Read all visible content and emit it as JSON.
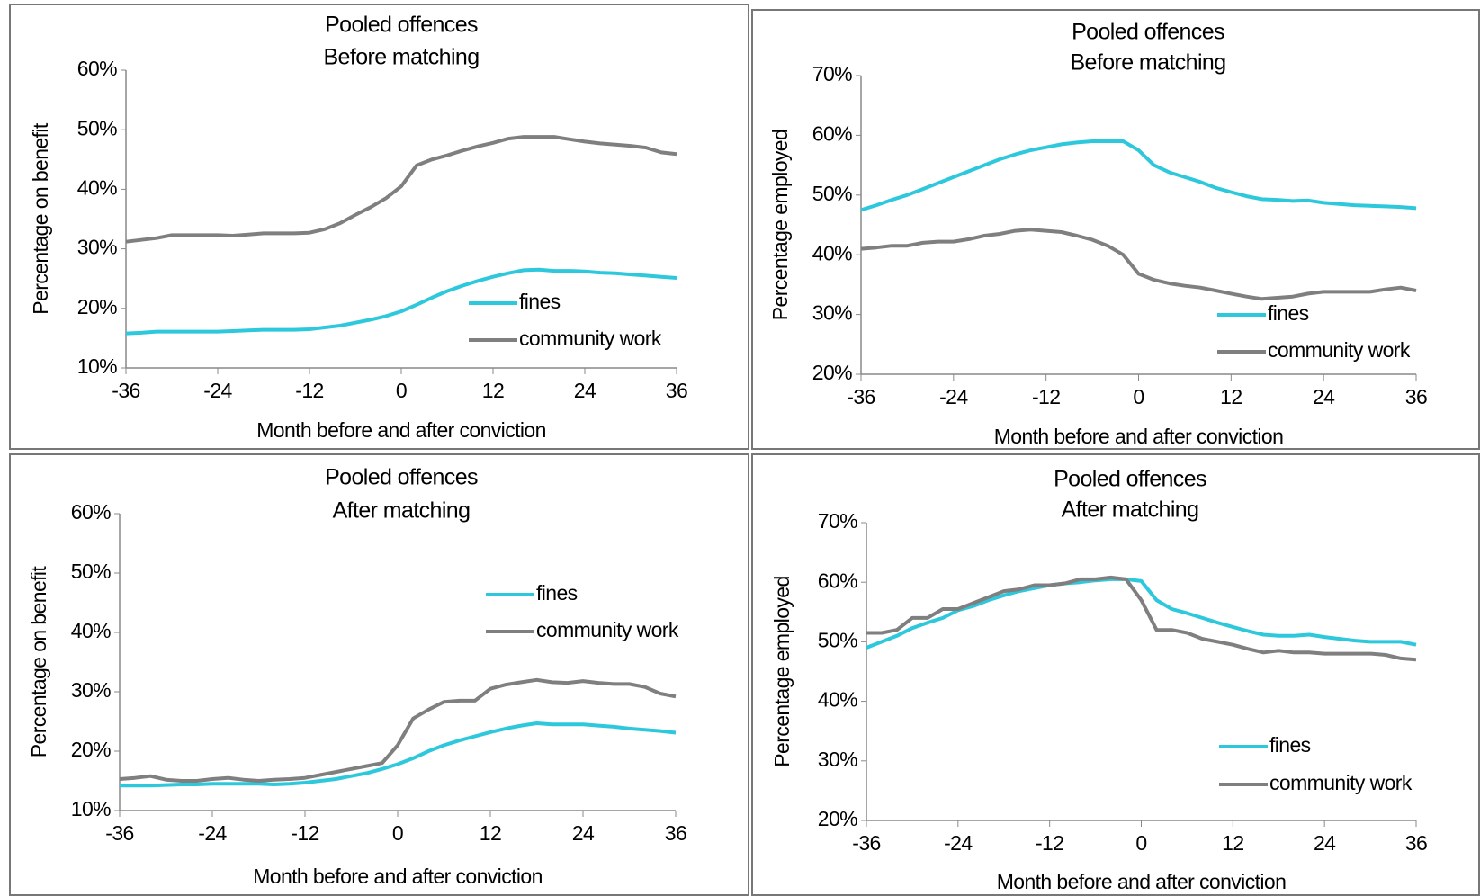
{
  "chart_data": [
    {
      "type": "line",
      "title": "Pooled offences",
      "subtitle": "Before matching",
      "x_label": "Month before and after conviction",
      "y_label": "Percentage on benefit",
      "x": [
        -36,
        -34,
        -32,
        -30,
        -28,
        -26,
        -24,
        -22,
        -20,
        -18,
        -16,
        -14,
        -12,
        -10,
        -8,
        -6,
        -4,
        -2,
        0,
        2,
        4,
        6,
        8,
        10,
        12,
        14,
        16,
        18,
        20,
        22,
        24,
        26,
        28,
        30,
        32,
        34,
        36
      ],
      "series": [
        {
          "name": "fines",
          "color": "#2ec8dc",
          "values": [
            15.8,
            15.9,
            16.1,
            16.1,
            16.1,
            16.1,
            16.1,
            16.2,
            16.3,
            16.4,
            16.4,
            16.4,
            16.5,
            16.8,
            17.1,
            17.6,
            18.1,
            18.7,
            19.5,
            20.6,
            21.8,
            22.9,
            23.8,
            24.6,
            25.3,
            25.9,
            26.4,
            26.5,
            26.3,
            26.3,
            26.2,
            26.0,
            25.9,
            25.7,
            25.5,
            25.3,
            25.1
          ]
        },
        {
          "name": "community work",
          "color": "#7f7f7f",
          "values": [
            31.2,
            31.5,
            31.8,
            32.3,
            32.3,
            32.3,
            32.3,
            32.2,
            32.4,
            32.6,
            32.6,
            32.6,
            32.7,
            33.3,
            34.3,
            35.7,
            37.0,
            38.5,
            40.5,
            44.0,
            45.0,
            45.7,
            46.5,
            47.2,
            47.8,
            48.5,
            48.8,
            48.8,
            48.8,
            48.4,
            48.0,
            47.7,
            47.5,
            47.3,
            47.0,
            46.2,
            45.9
          ]
        }
      ],
      "xlim": [
        -36,
        36
      ],
      "xticks": [
        -36,
        -24,
        -12,
        0,
        12,
        24,
        36
      ],
      "ylim": [
        10,
        60
      ],
      "yticks": [
        {
          "value": 10,
          "label": "10%"
        },
        {
          "value": 20,
          "label": "20%"
        },
        {
          "value": 30,
          "label": "30%"
        },
        {
          "value": 40,
          "label": "40%"
        },
        {
          "value": 50,
          "label": "50%"
        },
        {
          "value": 60,
          "label": "60%"
        }
      ]
    },
    {
      "type": "line",
      "title": "Pooled offences",
      "subtitle": "Before matching",
      "x_label": "Month before and after conviction",
      "y_label": "Percentage employed",
      "x": [
        -36,
        -34,
        -32,
        -30,
        -28,
        -26,
        -24,
        -22,
        -20,
        -18,
        -16,
        -14,
        -12,
        -10,
        -8,
        -6,
        -4,
        -2,
        0,
        2,
        4,
        6,
        8,
        10,
        12,
        14,
        16,
        18,
        20,
        22,
        24,
        26,
        28,
        30,
        32,
        34,
        36
      ],
      "series": [
        {
          "name": "fines",
          "color": "#2ec8dc",
          "values": [
            47.5,
            48.3,
            49.2,
            50.0,
            51.0,
            52.0,
            53.0,
            54.0,
            55.0,
            56.0,
            56.8,
            57.5,
            58.0,
            58.5,
            58.8,
            59.0,
            59.0,
            59.0,
            57.5,
            55.0,
            53.8,
            53.0,
            52.2,
            51.2,
            50.5,
            49.8,
            49.3,
            49.2,
            49.0,
            49.1,
            48.7,
            48.5,
            48.3,
            48.2,
            48.1,
            48.0,
            47.8
          ]
        },
        {
          "name": "community work",
          "color": "#7f7f7f",
          "values": [
            41.0,
            41.2,
            41.5,
            41.5,
            42.0,
            42.2,
            42.2,
            42.6,
            43.2,
            43.5,
            44.0,
            44.2,
            44.0,
            43.8,
            43.2,
            42.5,
            41.5,
            40.0,
            36.8,
            35.8,
            35.2,
            34.8,
            34.5,
            34.0,
            33.5,
            33.0,
            32.6,
            32.8,
            33.0,
            33.5,
            33.8,
            33.8,
            33.8,
            33.8,
            34.2,
            34.5,
            34.0
          ]
        }
      ],
      "xlim": [
        -36,
        36
      ],
      "xticks": [
        -36,
        -24,
        -12,
        0,
        12,
        24,
        36
      ],
      "ylim": [
        20,
        70
      ],
      "yticks": [
        {
          "value": 20,
          "label": "20%"
        },
        {
          "value": 30,
          "label": "30%"
        },
        {
          "value": 40,
          "label": "40%"
        },
        {
          "value": 50,
          "label": "50%"
        },
        {
          "value": 60,
          "label": "60%"
        },
        {
          "value": 70,
          "label": "70%"
        }
      ]
    },
    {
      "type": "line",
      "title": "Pooled offences",
      "subtitle": "After matching",
      "x_label": "Month before and after conviction",
      "y_label": "Percentage on benefit",
      "x": [
        -36,
        -34,
        -32,
        -30,
        -28,
        -26,
        -24,
        -22,
        -20,
        -18,
        -16,
        -14,
        -12,
        -10,
        -8,
        -6,
        -4,
        -2,
        0,
        2,
        4,
        6,
        8,
        10,
        12,
        14,
        16,
        18,
        20,
        22,
        24,
        26,
        28,
        30,
        32,
        34,
        36
      ],
      "series": [
        {
          "name": "fines",
          "color": "#2ec8dc",
          "values": [
            14.2,
            14.2,
            14.2,
            14.3,
            14.4,
            14.4,
            14.5,
            14.5,
            14.5,
            14.5,
            14.4,
            14.5,
            14.7,
            15.0,
            15.3,
            15.8,
            16.3,
            17.0,
            17.8,
            18.8,
            20.0,
            21.0,
            21.8,
            22.5,
            23.2,
            23.8,
            24.3,
            24.7,
            24.5,
            24.5,
            24.5,
            24.3,
            24.1,
            23.8,
            23.6,
            23.4,
            23.1
          ]
        },
        {
          "name": "community work",
          "color": "#7f7f7f",
          "values": [
            15.3,
            15.5,
            15.8,
            15.2,
            15.0,
            15.0,
            15.3,
            15.5,
            15.2,
            15.0,
            15.2,
            15.3,
            15.5,
            16.0,
            16.5,
            17.0,
            17.5,
            18.0,
            21.0,
            25.5,
            27.0,
            28.3,
            28.5,
            28.5,
            30.5,
            31.2,
            31.6,
            32.0,
            31.6,
            31.5,
            31.8,
            31.5,
            31.3,
            31.3,
            30.8,
            29.7,
            29.2
          ]
        }
      ],
      "xlim": [
        -36,
        36
      ],
      "xticks": [
        -36,
        -24,
        -12,
        0,
        12,
        24,
        36
      ],
      "ylim": [
        10,
        60
      ],
      "yticks": [
        {
          "value": 10,
          "label": "10%"
        },
        {
          "value": 20,
          "label": "20%"
        },
        {
          "value": 30,
          "label": "30%"
        },
        {
          "value": 40,
          "label": "40%"
        },
        {
          "value": 50,
          "label": "50%"
        },
        {
          "value": 60,
          "label": "60%"
        }
      ]
    },
    {
      "type": "line",
      "title": "Pooled offences",
      "subtitle": "After matching",
      "x_label": "Month before and after conviction",
      "y_label": "Percentage employed",
      "x": [
        -36,
        -34,
        -32,
        -30,
        -28,
        -26,
        -24,
        -22,
        -20,
        -18,
        -16,
        -14,
        -12,
        -10,
        -8,
        -6,
        -4,
        -2,
        0,
        2,
        4,
        6,
        8,
        10,
        12,
        14,
        16,
        18,
        20,
        22,
        24,
        26,
        28,
        30,
        32,
        34,
        36
      ],
      "series": [
        {
          "name": "fines",
          "color": "#2ec8dc",
          "values": [
            49.0,
            50.0,
            51.0,
            52.3,
            53.2,
            54.0,
            55.3,
            56.0,
            57.0,
            57.8,
            58.5,
            59.0,
            59.5,
            59.8,
            60.0,
            60.3,
            60.5,
            60.5,
            60.2,
            57.0,
            55.5,
            54.8,
            54.0,
            53.2,
            52.5,
            51.8,
            51.2,
            51.0,
            51.0,
            51.2,
            50.8,
            50.5,
            50.2,
            50.0,
            50.0,
            50.0,
            49.5
          ]
        },
        {
          "name": "community work",
          "color": "#7f7f7f",
          "values": [
            51.5,
            51.5,
            52.0,
            54.0,
            54.0,
            55.5,
            55.5,
            56.5,
            57.5,
            58.5,
            58.8,
            59.5,
            59.5,
            59.8,
            60.5,
            60.5,
            60.8,
            60.5,
            57.0,
            52.0,
            52.0,
            51.5,
            50.5,
            50.0,
            49.5,
            48.8,
            48.2,
            48.5,
            48.2,
            48.2,
            48.0,
            48.0,
            48.0,
            48.0,
            47.8,
            47.2,
            47.0
          ]
        }
      ],
      "xlim": [
        -36,
        36
      ],
      "xticks": [
        -36,
        -24,
        -12,
        0,
        12,
        24,
        36
      ],
      "ylim": [
        20,
        70
      ],
      "yticks": [
        {
          "value": 20,
          "label": "20%"
        },
        {
          "value": 30,
          "label": "30%"
        },
        {
          "value": 40,
          "label": "40%"
        },
        {
          "value": 50,
          "label": "50%"
        },
        {
          "value": 60,
          "label": "60%"
        },
        {
          "value": 70,
          "label": "70%"
        }
      ]
    }
  ]
}
